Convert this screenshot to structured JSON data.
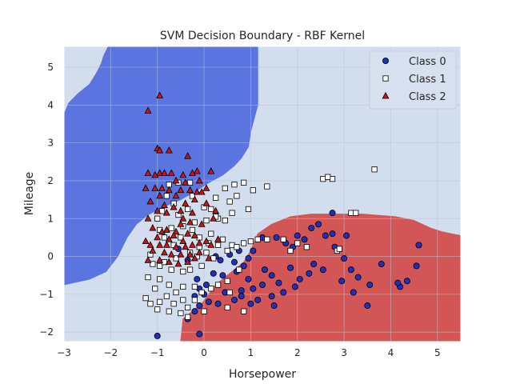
{
  "chart_data": {
    "type": "scatter",
    "title": "SVM Decision Boundary - RBF Kernel",
    "xlabel": "Horsepower",
    "ylabel": "Mileage",
    "xlim": [
      -3,
      5.5
    ],
    "ylim": [
      -2.25,
      5.55
    ],
    "xticks": [
      -3,
      -2,
      -1,
      0,
      1,
      2,
      3,
      4,
      5
    ],
    "yticks": [
      -2,
      -1,
      0,
      1,
      2,
      3,
      4,
      5
    ],
    "grid": true,
    "legend_position": "top-right",
    "background_color": "#d2dded",
    "regions": [
      {
        "class": "Class 0",
        "color": "#5a74e0",
        "polygon": [
          [
            -3,
            3.75
          ],
          [
            -2.9,
            4.05
          ],
          [
            -2.7,
            4.3
          ],
          [
            -2.45,
            4.55
          ],
          [
            -2.3,
            4.85
          ],
          [
            -2.2,
            5.1
          ],
          [
            -2.15,
            5.3
          ],
          [
            -2.05,
            5.55
          ],
          [
            1.15,
            5.55
          ],
          [
            1.15,
            4.0
          ],
          [
            1.0,
            3.3
          ],
          [
            0.95,
            2.9
          ],
          [
            0.8,
            2.6
          ],
          [
            0.65,
            2.4
          ],
          [
            0.4,
            2.15
          ],
          [
            0.1,
            1.95
          ],
          [
            -0.15,
            1.75
          ],
          [
            -0.5,
            1.5
          ],
          [
            -0.9,
            1.3
          ],
          [
            -1.2,
            1.1
          ],
          [
            -1.45,
            0.85
          ],
          [
            -1.65,
            0.5
          ],
          [
            -1.85,
            0.0
          ],
          [
            -2.1,
            -0.4
          ],
          [
            -2.45,
            -0.6
          ],
          [
            -3,
            -0.75
          ]
        ]
      },
      {
        "class": "Class 2",
        "color": "#d35656",
        "polygon": [
          [
            -0.5,
            -2.25
          ],
          [
            -0.45,
            -1.65
          ],
          [
            -0.25,
            -1.45
          ],
          [
            -0.05,
            -1.25
          ],
          [
            0.25,
            -0.75
          ],
          [
            0.55,
            -0.45
          ],
          [
            0.85,
            -0.15
          ],
          [
            1.0,
            0.15
          ],
          [
            1.15,
            0.6
          ],
          [
            1.45,
            0.85
          ],
          [
            1.85,
            1.05
          ],
          [
            2.3,
            1.12
          ],
          [
            3.4,
            1.12
          ],
          [
            4.1,
            1.05
          ],
          [
            4.5,
            0.95
          ],
          [
            4.85,
            0.75
          ],
          [
            5.1,
            0.65
          ],
          [
            5.3,
            0.6
          ],
          [
            5.5,
            0.55
          ],
          [
            5.5,
            -2.25
          ]
        ]
      }
    ],
    "series": [
      {
        "name": "Class 0",
        "marker": "circle",
        "color": "#1f2fc0",
        "points": [
          [
            2.75,
            1.15
          ],
          [
            2.45,
            0.85
          ],
          [
            2.6,
            0.55
          ],
          [
            2.75,
            0.6
          ],
          [
            2.3,
            0.75
          ],
          [
            2.15,
            0.45
          ],
          [
            2.0,
            0.55
          ],
          [
            1.9,
            0.25
          ],
          [
            1.75,
            0.35
          ],
          [
            1.55,
            0.5
          ],
          [
            1.25,
            0.5
          ],
          [
            1.05,
            0.15
          ],
          [
            0.95,
            -0.05
          ],
          [
            0.75,
            0.15
          ],
          [
            0.65,
            -0.15
          ],
          [
            0.55,
            0.05
          ],
          [
            0.35,
            -0.1
          ],
          [
            0.25,
            0.0
          ],
          [
            0.85,
            -0.25
          ],
          [
            0.7,
            -0.4
          ],
          [
            0.4,
            -0.5
          ],
          [
            0.2,
            -0.45
          ],
          [
            0.05,
            -0.75
          ],
          [
            -0.15,
            -0.6
          ],
          [
            -0.1,
            -0.85
          ],
          [
            -0.2,
            -1.05
          ],
          [
            0.0,
            -1.0
          ],
          [
            0.1,
            -1.2
          ],
          [
            0.3,
            -1.25
          ],
          [
            -0.1,
            -1.3
          ],
          [
            -0.2,
            -1.45
          ],
          [
            -0.35,
            -1.65
          ],
          [
            0.45,
            -0.95
          ],
          [
            0.65,
            -1.15
          ],
          [
            0.8,
            -0.9
          ],
          [
            0.95,
            -0.6
          ],
          [
            1.05,
            -0.85
          ],
          [
            1.25,
            -0.75
          ],
          [
            1.45,
            -0.5
          ],
          [
            1.6,
            -0.7
          ],
          [
            1.7,
            -0.95
          ],
          [
            1.45,
            -1.05
          ],
          [
            1.15,
            -1.15
          ],
          [
            1.0,
            -1.25
          ],
          [
            0.8,
            -1.05
          ],
          [
            1.5,
            -1.3
          ],
          [
            2.05,
            -0.6
          ],
          [
            2.25,
            -0.45
          ],
          [
            1.95,
            -0.8
          ],
          [
            2.35,
            -0.2
          ],
          [
            2.55,
            -0.35
          ],
          [
            2.8,
            0.25
          ],
          [
            3.05,
            0.55
          ],
          [
            3.0,
            -0.05
          ],
          [
            3.15,
            -0.35
          ],
          [
            3.3,
            -0.55
          ],
          [
            3.55,
            -0.75
          ],
          [
            3.8,
            -0.2
          ],
          [
            2.95,
            -0.65
          ],
          [
            3.2,
            -0.95
          ],
          [
            3.5,
            -1.3
          ],
          [
            4.2,
            -0.8
          ],
          [
            4.35,
            -0.65
          ],
          [
            4.15,
            -0.7
          ],
          [
            4.55,
            -0.25
          ],
          [
            4.6,
            0.3
          ],
          [
            -0.55,
            0.2
          ],
          [
            -0.35,
            -0.1
          ],
          [
            1.85,
            -0.3
          ],
          [
            1.3,
            -0.35
          ],
          [
            -1.0,
            -2.1
          ],
          [
            -0.1,
            -2.05
          ]
        ]
      },
      {
        "name": "Class 1",
        "marker": "square",
        "color": "#ffffff",
        "points": [
          [
            3.65,
            2.3
          ],
          [
            2.55,
            2.05
          ],
          [
            2.75,
            2.05
          ],
          [
            2.65,
            2.1
          ],
          [
            3.15,
            1.15
          ],
          [
            3.25,
            1.15
          ],
          [
            1.35,
            1.85
          ],
          [
            0.65,
            1.9
          ],
          [
            0.85,
            1.95
          ],
          [
            1.05,
            1.75
          ],
          [
            0.45,
            1.8
          ],
          [
            0.7,
            1.6
          ],
          [
            0.25,
            1.55
          ],
          [
            0.55,
            1.45
          ],
          [
            0.95,
            1.25
          ],
          [
            0.0,
            1.3
          ],
          [
            0.15,
            1.25
          ],
          [
            0.6,
            1.15
          ],
          [
            0.3,
            1.0
          ],
          [
            0.45,
            0.95
          ],
          [
            0.05,
            0.95
          ],
          [
            -0.2,
            0.9
          ],
          [
            -0.45,
            0.8
          ],
          [
            -0.55,
            1.1
          ],
          [
            -0.35,
            1.25
          ],
          [
            -0.25,
            1.6
          ],
          [
            -0.3,
            1.95
          ],
          [
            -0.55,
            1.95
          ],
          [
            -0.75,
            1.9
          ],
          [
            -0.8,
            1.6
          ],
          [
            -0.65,
            1.4
          ],
          [
            -0.9,
            1.2
          ],
          [
            -1.0,
            1.0
          ],
          [
            -0.7,
            0.75
          ],
          [
            -0.95,
            0.7
          ],
          [
            -0.85,
            0.5
          ],
          [
            -0.5,
            0.5
          ],
          [
            -0.1,
            0.5
          ],
          [
            0.15,
            0.6
          ],
          [
            0.4,
            0.45
          ],
          [
            0.6,
            0.3
          ],
          [
            0.85,
            0.35
          ],
          [
            1.0,
            0.4
          ],
          [
            1.15,
            0.45
          ],
          [
            1.35,
            0.45
          ],
          [
            1.7,
            0.45
          ],
          [
            2.0,
            0.35
          ],
          [
            2.85,
            0.15
          ],
          [
            2.9,
            0.2
          ],
          [
            2.2,
            0.25
          ],
          [
            1.85,
            0.15
          ],
          [
            0.7,
            0.25
          ],
          [
            0.5,
            0.15
          ],
          [
            0.3,
            0.3
          ],
          [
            0.1,
            0.35
          ],
          [
            -0.1,
            0.25
          ],
          [
            -0.3,
            0.1
          ],
          [
            -0.15,
            0.0
          ],
          [
            0.05,
            0.1
          ],
          [
            0.2,
            -0.05
          ],
          [
            -0.05,
            -0.25
          ],
          [
            -0.3,
            -0.35
          ],
          [
            -0.45,
            -0.4
          ],
          [
            -0.7,
            -0.35
          ],
          [
            -0.95,
            -0.25
          ],
          [
            -1.1,
            -0.2
          ],
          [
            -1.2,
            -0.55
          ],
          [
            -0.95,
            -0.6
          ],
          [
            -0.75,
            -0.75
          ],
          [
            -0.6,
            -0.95
          ],
          [
            -0.45,
            -0.8
          ],
          [
            -0.2,
            -0.8
          ],
          [
            -0.05,
            -0.95
          ],
          [
            0.15,
            -0.85
          ],
          [
            0.3,
            -0.75
          ],
          [
            0.5,
            -0.65
          ],
          [
            -1.25,
            -1.1
          ],
          [
            -1.15,
            -1.25
          ],
          [
            -0.95,
            -1.2
          ],
          [
            -0.8,
            -1.05
          ],
          [
            -0.65,
            -1.25
          ],
          [
            -0.45,
            -1.15
          ],
          [
            -0.35,
            -1.35
          ],
          [
            -0.5,
            -1.5
          ],
          [
            -0.2,
            -1.15
          ],
          [
            -1.0,
            -1.4
          ],
          [
            -0.75,
            -1.45
          ],
          [
            -0.85,
            -0.15
          ],
          [
            -0.6,
            -0.05
          ],
          [
            -1.15,
            0.05
          ],
          [
            -1.05,
            -0.85
          ],
          [
            -0.35,
            -1.6
          ],
          [
            0.0,
            -1.45
          ],
          [
            0.5,
            -1.35
          ],
          [
            0.85,
            -1.45
          ],
          [
            -0.65,
            0.3
          ],
          [
            -0.25,
            0.7
          ],
          [
            0.25,
            1.05
          ],
          [
            0.75,
            -0.35
          ],
          [
            0.55,
            -0.95
          ]
        ]
      },
      {
        "name": "Class 2",
        "marker": "triangle",
        "color": "#cc1414",
        "points": [
          [
            -0.95,
            4.25
          ],
          [
            -1.2,
            3.85
          ],
          [
            -1.0,
            2.85
          ],
          [
            -0.95,
            2.8
          ],
          [
            -0.75,
            2.8
          ],
          [
            -0.35,
            2.65
          ],
          [
            -1.2,
            2.2
          ],
          [
            -0.95,
            2.2
          ],
          [
            -0.85,
            2.2
          ],
          [
            -0.7,
            2.2
          ],
          [
            -1.05,
            2.15
          ],
          [
            -0.45,
            2.15
          ],
          [
            -0.25,
            2.2
          ],
          [
            -0.15,
            2.25
          ],
          [
            0.15,
            2.25
          ],
          [
            -0.6,
            2.0
          ],
          [
            -0.1,
            2.0
          ],
          [
            -0.4,
            1.95
          ],
          [
            -1.25,
            1.8
          ],
          [
            -1.05,
            1.8
          ],
          [
            -0.9,
            1.8
          ],
          [
            -0.75,
            1.75
          ],
          [
            -0.5,
            1.75
          ],
          [
            -0.3,
            1.75
          ],
          [
            -0.15,
            1.7
          ],
          [
            0.05,
            1.8
          ],
          [
            -0.05,
            1.7
          ],
          [
            -0.95,
            1.6
          ],
          [
            -0.6,
            1.6
          ],
          [
            -0.2,
            1.5
          ],
          [
            -1.15,
            1.45
          ],
          [
            -0.85,
            1.35
          ],
          [
            -0.4,
            1.4
          ],
          [
            -0.65,
            1.3
          ],
          [
            0.05,
            1.4
          ],
          [
            -1.0,
            1.2
          ],
          [
            -0.8,
            1.15
          ],
          [
            -0.5,
            1.2
          ],
          [
            -0.25,
            1.15
          ],
          [
            0.25,
            1.2
          ],
          [
            0.2,
            1.0
          ],
          [
            -1.2,
            1.0
          ],
          [
            -0.45,
            1.0
          ],
          [
            -0.3,
            0.9
          ],
          [
            -0.05,
            0.85
          ],
          [
            -1.1,
            0.75
          ],
          [
            -0.9,
            0.65
          ],
          [
            -0.6,
            0.65
          ],
          [
            -0.35,
            0.6
          ],
          [
            -1.0,
            0.5
          ],
          [
            -0.75,
            0.45
          ],
          [
            -0.45,
            0.4
          ],
          [
            -1.25,
            0.4
          ],
          [
            -1.15,
            0.3
          ],
          [
            -0.95,
            0.3
          ],
          [
            -0.8,
            0.3
          ],
          [
            -0.6,
            0.25
          ],
          [
            -0.4,
            0.25
          ],
          [
            -0.25,
            0.3
          ],
          [
            -0.1,
            0.35
          ],
          [
            0.05,
            0.4
          ],
          [
            0.15,
            0.3
          ],
          [
            -1.1,
            0.15
          ],
          [
            -0.85,
            0.1
          ],
          [
            -0.7,
            0.05
          ],
          [
            -0.5,
            0.05
          ],
          [
            -0.3,
            0.05
          ],
          [
            -0.1,
            0.1
          ],
          [
            -1.2,
            -0.1
          ],
          [
            -0.95,
            -0.1
          ],
          [
            -0.75,
            -0.15
          ],
          [
            -0.55,
            -0.2
          ],
          [
            -0.35,
            -0.15
          ],
          [
            -0.2,
            -0.05
          ],
          [
            0.1,
            -0.05
          ],
          [
            -0.8,
            0.7
          ],
          [
            -0.5,
            0.85
          ],
          [
            0.3,
            0.45
          ],
          [
            -0.2,
            0.55
          ],
          [
            -0.65,
            0.55
          ]
        ]
      }
    ]
  }
}
